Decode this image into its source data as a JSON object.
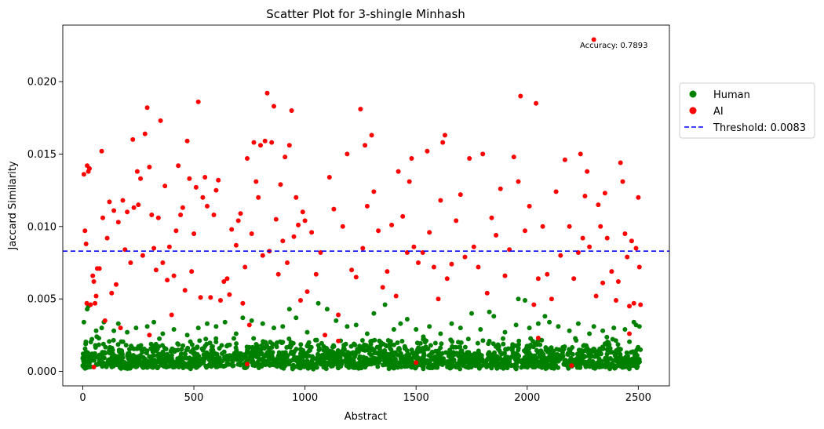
{
  "chart_data": {
    "type": "scatter",
    "title": "Scatter Plot for 3-shingle Minhash",
    "xlabel": "Abstract",
    "ylabel": "Jaccard Similarity",
    "xlim": [
      -90,
      2640
    ],
    "ylim": [
      -0.001,
      0.0239
    ],
    "xticks": [
      0,
      500,
      1000,
      1500,
      2000,
      2500
    ],
    "xtick_labels": [
      "0",
      "500",
      "1000",
      "1500",
      "2000",
      "2500"
    ],
    "yticks": [
      0.0,
      0.005,
      0.01,
      0.015,
      0.02
    ],
    "ytick_labels": [
      "0.000",
      "0.005",
      "0.010",
      "0.015",
      "0.020"
    ],
    "grid": false,
    "legend_position": "right-outside",
    "annotation": {
      "text": "Accuracy: 0.7893",
      "x": 2390,
      "y": 0.0225
    },
    "threshold": {
      "name": "Threshold: 0.0083",
      "value": 0.0083,
      "color": "#0000ff",
      "style": "dashed"
    },
    "series": [
      {
        "name": "Human",
        "color": "#008000",
        "summary": "approx. 2000 points clustered between 0.0001 and 0.0022 across x 0–2510, with sparse outliers up to ~0.005",
        "points": [
          [
            5,
            0.0034
          ],
          [
            20,
            0.0043
          ],
          [
            25,
            0.0045
          ],
          [
            60,
            0.0028
          ],
          [
            85,
            0.003
          ],
          [
            95,
            0.0034
          ],
          [
            140,
            0.0028
          ],
          [
            160,
            0.0033
          ],
          [
            200,
            0.0027
          ],
          [
            240,
            0.003
          ],
          [
            290,
            0.0031
          ],
          [
            320,
            0.0034
          ],
          [
            360,
            0.0026
          ],
          [
            410,
            0.0029
          ],
          [
            470,
            0.0025
          ],
          [
            520,
            0.003
          ],
          [
            560,
            0.0033
          ],
          [
            600,
            0.0031
          ],
          [
            640,
            0.0034
          ],
          [
            690,
            0.0026
          ],
          [
            720,
            0.0037
          ],
          [
            760,
            0.0035
          ],
          [
            810,
            0.0033
          ],
          [
            860,
            0.003
          ],
          [
            900,
            0.0031
          ],
          [
            930,
            0.0043
          ],
          [
            960,
            0.0037
          ],
          [
            1010,
            0.0027
          ],
          [
            1060,
            0.0047
          ],
          [
            1100,
            0.0043
          ],
          [
            1140,
            0.0035
          ],
          [
            1190,
            0.0031
          ],
          [
            1230,
            0.0032
          ],
          [
            1280,
            0.0026
          ],
          [
            1310,
            0.004
          ],
          [
            1360,
            0.0046
          ],
          [
            1400,
            0.0029
          ],
          [
            1430,
            0.0033
          ],
          [
            1460,
            0.0036
          ],
          [
            1500,
            0.0029
          ],
          [
            1560,
            0.0031
          ],
          [
            1610,
            0.0026
          ],
          [
            1660,
            0.0033
          ],
          [
            1700,
            0.003
          ],
          [
            1750,
            0.004
          ],
          [
            1790,
            0.0029
          ],
          [
            1830,
            0.0041
          ],
          [
            1850,
            0.0038
          ],
          [
            1900,
            0.0027
          ],
          [
            1950,
            0.0032
          ],
          [
            1960,
            0.005
          ],
          [
            1990,
            0.0049
          ],
          [
            2010,
            0.003
          ],
          [
            2050,
            0.0033
          ],
          [
            2080,
            0.0038
          ],
          [
            2100,
            0.0034
          ],
          [
            2140,
            0.0031
          ],
          [
            2190,
            0.0028
          ],
          [
            2230,
            0.0033
          ],
          [
            2280,
            0.0026
          ],
          [
            2300,
            0.0031
          ],
          [
            2340,
            0.0028
          ],
          [
            2390,
            0.003
          ],
          [
            2440,
            0.0029
          ],
          [
            2480,
            0.0034
          ],
          [
            2490,
            0.0032
          ],
          [
            2505,
            0.0031
          ]
        ]
      },
      {
        "name": "AI",
        "color": "#ff0000",
        "summary": "approx. 500 points spread between 0.0003 and 0.023 across x 0–2510",
        "points": [
          [
            5,
            0.0136
          ],
          [
            10,
            0.0097
          ],
          [
            15,
            0.0088
          ],
          [
            18,
            0.0047
          ],
          [
            20,
            0.0142
          ],
          [
            25,
            0.0138
          ],
          [
            30,
            0.014
          ],
          [
            35,
            0.0046
          ],
          [
            45,
            0.0066
          ],
          [
            50,
            0.0062
          ],
          [
            55,
            0.0047
          ],
          [
            60,
            0.0052
          ],
          [
            65,
            0.0071
          ],
          [
            75,
            0.0071
          ],
          [
            85,
            0.0152
          ],
          [
            90,
            0.0106
          ],
          [
            100,
            0.0035
          ],
          [
            110,
            0.0092
          ],
          [
            120,
            0.0117
          ],
          [
            130,
            0.0054
          ],
          [
            140,
            0.0111
          ],
          [
            150,
            0.006
          ],
          [
            160,
            0.0103
          ],
          [
            170,
            0.003
          ],
          [
            180,
            0.0118
          ],
          [
            190,
            0.0084
          ],
          [
            200,
            0.011
          ],
          [
            215,
            0.0075
          ],
          [
            225,
            0.016
          ],
          [
            230,
            0.0113
          ],
          [
            245,
            0.0138
          ],
          [
            250,
            0.0115
          ],
          [
            260,
            0.0133
          ],
          [
            270,
            0.008
          ],
          [
            280,
            0.0164
          ],
          [
            290,
            0.0182
          ],
          [
            300,
            0.0141
          ],
          [
            310,
            0.0108
          ],
          [
            320,
            0.0085
          ],
          [
            330,
            0.007
          ],
          [
            340,
            0.0106
          ],
          [
            350,
            0.0173
          ],
          [
            360,
            0.0075
          ],
          [
            370,
            0.0128
          ],
          [
            380,
            0.0063
          ],
          [
            390,
            0.0086
          ],
          [
            400,
            0.0039
          ],
          [
            410,
            0.0066
          ],
          [
            420,
            0.0097
          ],
          [
            430,
            0.0142
          ],
          [
            440,
            0.0108
          ],
          [
            450,
            0.0113
          ],
          [
            460,
            0.0056
          ],
          [
            470,
            0.0159
          ],
          [
            480,
            0.0133
          ],
          [
            490,
            0.0069
          ],
          [
            500,
            0.0095
          ],
          [
            510,
            0.0127
          ],
          [
            520,
            0.0186
          ],
          [
            530,
            0.0051
          ],
          [
            540,
            0.012
          ],
          [
            550,
            0.0134
          ],
          [
            560,
            0.0114
          ],
          [
            575,
            0.0051
          ],
          [
            590,
            0.0108
          ],
          [
            600,
            0.0125
          ],
          [
            610,
            0.0132
          ],
          [
            620,
            0.0049
          ],
          [
            635,
            0.0062
          ],
          [
            650,
            0.0064
          ],
          [
            660,
            0.0053
          ],
          [
            670,
            0.0098
          ],
          [
            690,
            0.0087
          ],
          [
            700,
            0.0104
          ],
          [
            710,
            0.0109
          ],
          [
            720,
            0.0047
          ],
          [
            730,
            0.0072
          ],
          [
            740,
            0.0147
          ],
          [
            750,
            0.0032
          ],
          [
            760,
            0.0095
          ],
          [
            770,
            0.0158
          ],
          [
            780,
            0.0131
          ],
          [
            790,
            0.012
          ],
          [
            800,
            0.0156
          ],
          [
            810,
            0.008
          ],
          [
            820,
            0.0159
          ],
          [
            830,
            0.0192
          ],
          [
            840,
            0.0083
          ],
          [
            850,
            0.0158
          ],
          [
            860,
            0.0183
          ],
          [
            870,
            0.0105
          ],
          [
            880,
            0.0067
          ],
          [
            890,
            0.0129
          ],
          [
            900,
            0.009
          ],
          [
            910,
            0.0148
          ],
          [
            920,
            0.0075
          ],
          [
            930,
            0.0156
          ],
          [
            940,
            0.018
          ],
          [
            950,
            0.0093
          ],
          [
            960,
            0.012
          ],
          [
            970,
            0.0101
          ],
          [
            980,
            0.0049
          ],
          [
            990,
            0.011
          ],
          [
            1000,
            0.0104
          ],
          [
            1010,
            0.0055
          ],
          [
            1030,
            0.0096
          ],
          [
            1050,
            0.0067
          ],
          [
            1070,
            0.0082
          ],
          [
            1090,
            0.0025
          ],
          [
            1110,
            0.0134
          ],
          [
            1130,
            0.0112
          ],
          [
            1150,
            0.0039
          ],
          [
            1170,
            0.01
          ],
          [
            1190,
            0.015
          ],
          [
            1210,
            0.007
          ],
          [
            1230,
            0.0065
          ],
          [
            1250,
            0.0181
          ],
          [
            1260,
            0.0085
          ],
          [
            1270,
            0.0156
          ],
          [
            1280,
            0.0114
          ],
          [
            1300,
            0.0163
          ],
          [
            1310,
            0.0124
          ],
          [
            1330,
            0.0097
          ],
          [
            1350,
            0.0058
          ],
          [
            1370,
            0.0069
          ],
          [
            1390,
            0.0101
          ],
          [
            1410,
            0.0052
          ],
          [
            1420,
            0.0138
          ],
          [
            1440,
            0.0107
          ],
          [
            1460,
            0.0082
          ],
          [
            1470,
            0.0131
          ],
          [
            1480,
            0.0147
          ],
          [
            1490,
            0.0086
          ],
          [
            1510,
            0.0075
          ],
          [
            1530,
            0.0082
          ],
          [
            1550,
            0.0152
          ],
          [
            1560,
            0.0096
          ],
          [
            1580,
            0.0072
          ],
          [
            1600,
            0.005
          ],
          [
            1610,
            0.0118
          ],
          [
            1620,
            0.0158
          ],
          [
            1630,
            0.0163
          ],
          [
            1640,
            0.0064
          ],
          [
            1660,
            0.0074
          ],
          [
            1680,
            0.0104
          ],
          [
            1700,
            0.0122
          ],
          [
            1720,
            0.0079
          ],
          [
            1740,
            0.0147
          ],
          [
            1760,
            0.0086
          ],
          [
            1780,
            0.0072
          ],
          [
            1800,
            0.015
          ],
          [
            1820,
            0.0054
          ],
          [
            1840,
            0.0106
          ],
          [
            1860,
            0.0094
          ],
          [
            1880,
            0.0126
          ],
          [
            1900,
            0.0066
          ],
          [
            1920,
            0.0084
          ],
          [
            1940,
            0.0148
          ],
          [
            1960,
            0.0131
          ],
          [
            1970,
            0.019
          ],
          [
            1990,
            0.0097
          ],
          [
            2010,
            0.0114
          ],
          [
            2030,
            0.0046
          ],
          [
            2040,
            0.0185
          ],
          [
            2050,
            0.0064
          ],
          [
            2070,
            0.01
          ],
          [
            2090,
            0.0067
          ],
          [
            2110,
            0.005
          ],
          [
            2130,
            0.0124
          ],
          [
            2150,
            0.008
          ],
          [
            2170,
            0.0146
          ],
          [
            2190,
            0.01
          ],
          [
            2210,
            0.0064
          ],
          [
            2230,
            0.0082
          ],
          [
            2240,
            0.015
          ],
          [
            2250,
            0.0092
          ],
          [
            2260,
            0.0121
          ],
          [
            2270,
            0.0138
          ],
          [
            2280,
            0.0086
          ],
          [
            2300,
            0.0229
          ],
          [
            2310,
            0.0052
          ],
          [
            2320,
            0.0115
          ],
          [
            2330,
            0.01
          ],
          [
            2340,
            0.0061
          ],
          [
            2350,
            0.0123
          ],
          [
            2360,
            0.0092
          ],
          [
            2380,
            0.0069
          ],
          [
            2400,
            0.0049
          ],
          [
            2410,
            0.0062
          ],
          [
            2420,
            0.0144
          ],
          [
            2430,
            0.0131
          ],
          [
            2440,
            0.0095
          ],
          [
            2450,
            0.0079
          ],
          [
            2460,
            0.0045
          ],
          [
            2470,
            0.009
          ],
          [
            2480,
            0.0047
          ],
          [
            2490,
            0.0085
          ],
          [
            2500,
            0.012
          ],
          [
            2505,
            0.0072
          ],
          [
            2510,
            0.0046
          ],
          [
            50,
            0.0003
          ],
          [
            740,
            0.0005
          ],
          [
            1500,
            0.0006
          ],
          [
            2200,
            0.0004
          ],
          [
            300,
            0.0025
          ],
          [
            1150,
            0.0021
          ],
          [
            2050,
            0.0023
          ],
          [
            2460,
            0.0026
          ]
        ]
      }
    ]
  }
}
